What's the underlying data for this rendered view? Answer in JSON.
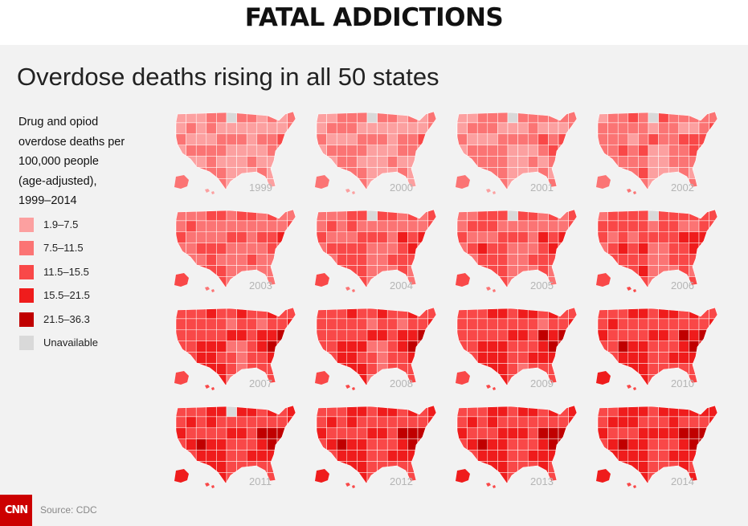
{
  "header": {
    "title": "FATAL ADDICTIONS"
  },
  "subtitle": "Overdose deaths rising in all 50 states",
  "legend": {
    "title_lines": [
      "Drug and opiod",
      "overdose deaths per",
      "100,000 people",
      "(age-adjusted),",
      "1999–2014"
    ],
    "items": [
      {
        "label": "1.9–7.5",
        "color": "#fca0a0"
      },
      {
        "label": "7.5–11.5",
        "color": "#fb7474"
      },
      {
        "label": "11.5–15.5",
        "color": "#f94848"
      },
      {
        "label": "15.5–21.5",
        "color": "#ef1c1c"
      },
      {
        "label": "21.5–36.3",
        "color": "#c00000"
      },
      {
        "label": "Unavailable",
        "color": "#d9d9d9"
      }
    ]
  },
  "maps": [
    {
      "year": "1999",
      "class_index": 0.4,
      "hot_index": 1.2,
      "nd_unavailable": true
    },
    {
      "year": "2000",
      "class_index": 0.5,
      "hot_index": 1.3,
      "nd_unavailable": true
    },
    {
      "year": "2001",
      "class_index": 0.6,
      "hot_index": 1.4,
      "nd_unavailable": true
    },
    {
      "year": "2002",
      "class_index": 0.9,
      "hot_index": 2.0,
      "nd_unavailable": true
    },
    {
      "year": "2003",
      "class_index": 1.2,
      "hot_index": 2.3,
      "nd_unavailable": false
    },
    {
      "year": "2004",
      "class_index": 1.4,
      "hot_index": 2.6,
      "nd_unavailable": true
    },
    {
      "year": "2005",
      "class_index": 1.5,
      "hot_index": 2.7,
      "nd_unavailable": true
    },
    {
      "year": "2006",
      "class_index": 1.8,
      "hot_index": 3.2,
      "nd_unavailable": true
    },
    {
      "year": "2007",
      "class_index": 2.0,
      "hot_index": 3.6,
      "nd_unavailable": false
    },
    {
      "year": "2008",
      "class_index": 2.0,
      "hot_index": 3.6,
      "nd_unavailable": false
    },
    {
      "year": "2009",
      "class_index": 2.1,
      "hot_index": 3.7,
      "nd_unavailable": false
    },
    {
      "year": "2010",
      "class_index": 2.2,
      "hot_index": 3.8,
      "nd_unavailable": false
    },
    {
      "year": "2011",
      "class_index": 2.3,
      "hot_index": 3.9,
      "nd_unavailable": true
    },
    {
      "year": "2012",
      "class_index": 2.3,
      "hot_index": 3.9,
      "nd_unavailable": false
    },
    {
      "year": "2013",
      "class_index": 2.4,
      "hot_index": 4.0,
      "nd_unavailable": false
    },
    {
      "year": "2014",
      "class_index": 2.6,
      "hot_index": 4.0,
      "nd_unavailable": false
    }
  ],
  "footer": {
    "logo_text": "CNN",
    "source": "Source: CDC"
  }
}
